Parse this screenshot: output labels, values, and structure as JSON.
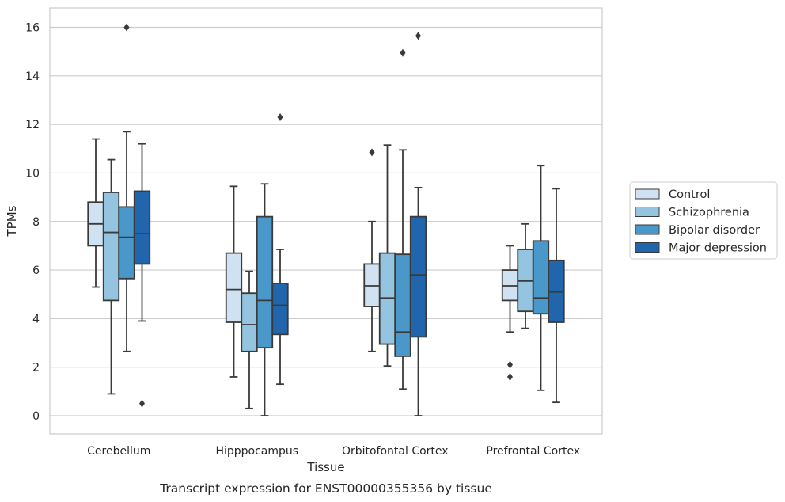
{
  "chart_data": {
    "type": "box",
    "xlabel": "Tissue",
    "ylabel": "TPMs",
    "caption": "Transcript expression for ENST00000355356 by tissue",
    "ylim": [
      -0.75,
      16.8
    ],
    "yticks": [
      0,
      2,
      4,
      6,
      8,
      10,
      12,
      14,
      16
    ],
    "grid": true,
    "legend_position": "right",
    "categories": [
      "Cerebellum",
      "Hipppocampus",
      "Orbitofontal Cortex",
      "Prefrontal Cortex"
    ],
    "series": [
      {
        "name": "Control",
        "color": "#d0e1f2",
        "boxes": [
          {
            "whislo": 5.3,
            "q1": 7.0,
            "med": 7.9,
            "q3": 8.8,
            "whishi": 11.4,
            "fliers": []
          },
          {
            "whislo": 1.6,
            "q1": 3.85,
            "med": 5.2,
            "q3": 6.7,
            "whishi": 9.45,
            "fliers": []
          },
          {
            "whislo": 2.65,
            "q1": 4.5,
            "med": 5.35,
            "q3": 6.25,
            "whishi": 8.0,
            "fliers": [
              10.85
            ]
          },
          {
            "whislo": 3.45,
            "q1": 4.75,
            "med": 5.35,
            "q3": 6.0,
            "whishi": 7.0,
            "fliers": [
              2.1,
              1.6
            ]
          }
        ]
      },
      {
        "name": "Schizophrenia",
        "color": "#94c4df",
        "boxes": [
          {
            "whislo": 0.9,
            "q1": 4.75,
            "med": 7.55,
            "q3": 9.2,
            "whishi": 10.55,
            "fliers": []
          },
          {
            "whislo": 0.3,
            "q1": 2.65,
            "med": 3.75,
            "q3": 5.05,
            "whishi": 5.95,
            "fliers": []
          },
          {
            "whislo": 2.05,
            "q1": 2.95,
            "med": 4.85,
            "q3": 6.7,
            "whishi": 11.15,
            "fliers": []
          },
          {
            "whislo": 3.6,
            "q1": 4.3,
            "med": 5.55,
            "q3": 6.85,
            "whishi": 7.9,
            "fliers": []
          }
        ]
      },
      {
        "name": "Bipolar disorder",
        "color": "#4a98c9",
        "boxes": [
          {
            "whislo": 2.65,
            "q1": 5.65,
            "med": 7.35,
            "q3": 8.6,
            "whishi": 11.7,
            "fliers": [
              16.0
            ]
          },
          {
            "whislo": 0.0,
            "q1": 2.8,
            "med": 4.75,
            "q3": 8.2,
            "whishi": 9.55,
            "fliers": []
          },
          {
            "whislo": 1.1,
            "q1": 2.45,
            "med": 3.45,
            "q3": 6.65,
            "whishi": 10.95,
            "fliers": [
              14.95
            ]
          },
          {
            "whislo": 1.05,
            "q1": 4.2,
            "med": 4.85,
            "q3": 7.2,
            "whishi": 10.3,
            "fliers": []
          }
        ]
      },
      {
        "name": "Major depression",
        "color": "#2166ac",
        "boxes": [
          {
            "whislo": 3.9,
            "q1": 6.25,
            "med": 7.5,
            "q3": 9.25,
            "whishi": 11.2,
            "fliers": [
              0.5
            ]
          },
          {
            "whislo": 1.3,
            "q1": 3.35,
            "med": 4.55,
            "q3": 5.45,
            "whishi": 6.85,
            "fliers": [
              12.3
            ]
          },
          {
            "whislo": 0.0,
            "q1": 3.25,
            "med": 5.8,
            "q3": 8.2,
            "whishi": 9.4,
            "fliers": [
              15.65
            ]
          },
          {
            "whislo": 0.55,
            "q1": 3.85,
            "med": 5.1,
            "q3": 6.4,
            "whishi": 9.35,
            "fliers": []
          }
        ]
      }
    ]
  }
}
